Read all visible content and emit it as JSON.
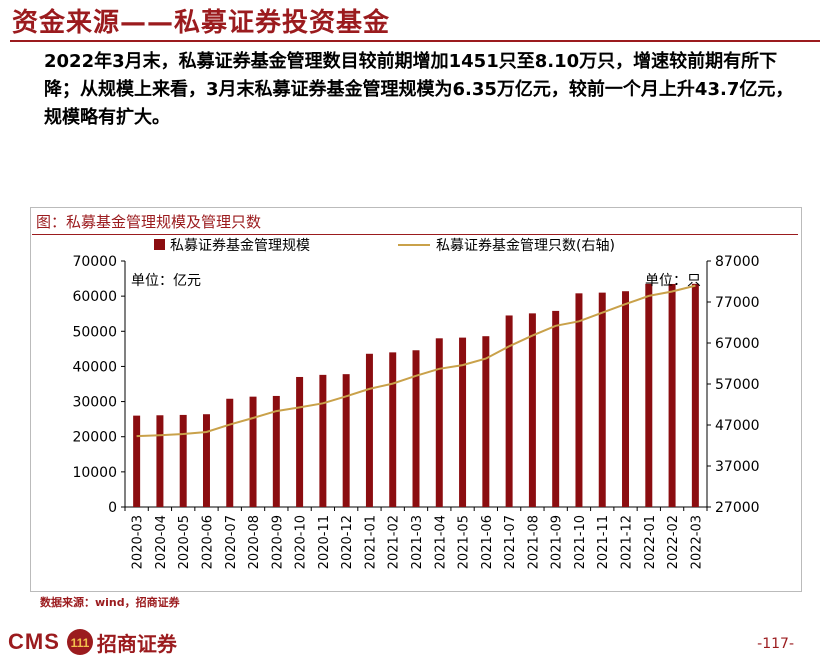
{
  "header": {
    "title": "资金来源——私募证券投资基金"
  },
  "summary": "2022年3月末，私募证券基金管理数目较前期增加1451只至8.10万只，增速较前期有所下降；从规模上来看，3月末私募证券基金管理规模为6.35万亿元，较前一个月上升43.7亿元，规模略有扩大。",
  "figure": {
    "title": "图：私募基金管理规模及管理只数"
  },
  "chart_data": {
    "type": "bar",
    "categories": [
      "2020-03",
      "2020-04",
      "2020-05",
      "2020-06",
      "2020-07",
      "2020-08",
      "2020-09",
      "2020-10",
      "2020-11",
      "2020-12",
      "2021-01",
      "2021-02",
      "2021-03",
      "2021-04",
      "2021-05",
      "2021-06",
      "2021-07",
      "2021-08",
      "2021-09",
      "2021-10",
      "2021-11",
      "2021-12",
      "2022-01",
      "2022-02",
      "2022-03"
    ],
    "series": [
      {
        "name": "私募证券基金管理规模",
        "type": "bar",
        "axis": "left",
        "color": "#8b0d10",
        "values": [
          26000,
          26100,
          26200,
          26400,
          30800,
          31400,
          31600,
          37000,
          37600,
          37800,
          43600,
          44000,
          44600,
          48000,
          48200,
          48600,
          54500,
          55100,
          55800,
          60800,
          61000,
          61400,
          63500,
          63463,
          63507
        ]
      },
      {
        "name": "私募证券基金管理只数(右轴)",
        "type": "line",
        "axis": "right",
        "color": "#c9a14a",
        "values": [
          44300,
          44500,
          44800,
          45300,
          47100,
          48700,
          50400,
          51300,
          52300,
          54000,
          55800,
          57100,
          59000,
          60700,
          61600,
          63200,
          66200,
          68800,
          71200,
          72300,
          74400,
          76500,
          78500,
          79549,
          81000
        ]
      }
    ],
    "y_left": {
      "unit_label": "单位：亿元",
      "ylim": [
        0,
        70000
      ],
      "ticks": [
        "0",
        "10000",
        "20000",
        "30000",
        "40000",
        "50000",
        "60000",
        "70000"
      ]
    },
    "y_right": {
      "unit_label": "单位：只",
      "ylim": [
        27000,
        87000
      ],
      "ticks": [
        "27000",
        "37000",
        "47000",
        "57000",
        "67000",
        "77000",
        "87000"
      ]
    },
    "legend": "top",
    "grid": false
  },
  "source": "数据来源：wind，招商证券",
  "footer": {
    "logo_text": "CMS",
    "logo_badge": "111",
    "brand": "招商证券",
    "page": "-117-"
  },
  "colors": {
    "accent": "#9b1b1e",
    "bar": "#8b0d10",
    "line": "#c9a14a"
  }
}
